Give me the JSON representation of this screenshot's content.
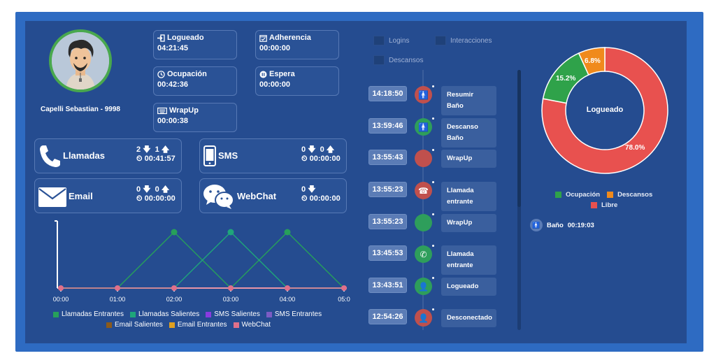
{
  "agent": {
    "name": "Capelli Sebastian - 9998"
  },
  "stats": [
    {
      "label": "Logueado",
      "value": "04:21:45",
      "icon": "login-icon"
    },
    {
      "label": "Adherencia",
      "value": "00:00:00",
      "icon": "calendar-check-icon"
    },
    {
      "label": "Ocupación",
      "value": "00:42:36",
      "icon": "clock-icon"
    },
    {
      "label": "Espera",
      "value": "00:00:00",
      "icon": "pause-icon"
    },
    {
      "label": "WrapUp",
      "value": "00:00:38",
      "icon": "keyboard-icon"
    }
  ],
  "channels": {
    "llamadas": {
      "name": "Llamadas",
      "in": "2",
      "out": "1",
      "time": "00:41:57"
    },
    "sms": {
      "name": "SMS",
      "in": "0",
      "out": "0",
      "time": "00:00:00"
    },
    "email": {
      "name": "Email",
      "in": "0",
      "out": "0",
      "time": "00:00:00"
    },
    "webchat": {
      "name": "WebChat",
      "in": "0",
      "time": "00:00:00"
    }
  },
  "chart_data": {
    "type": "line",
    "x": [
      "00:00",
      "01:00",
      "02:00",
      "03:00",
      "04:00",
      "05:0"
    ],
    "series": [
      {
        "name": "Llamadas Entrantes",
        "color": "#27a05a",
        "values": [
          0,
          0,
          1,
          0,
          1,
          0
        ]
      },
      {
        "name": "Llamadas Salientes",
        "color": "#1fa67a",
        "values": [
          0,
          0,
          0,
          1,
          0,
          0
        ]
      },
      {
        "name": "SMS Salientes",
        "color": "#8a3be0",
        "values": [
          0,
          0,
          0,
          0,
          0,
          0
        ]
      },
      {
        "name": "SMS Entrantes",
        "color": "#7c5cc4",
        "values": [
          0,
          0,
          0,
          0,
          0,
          0
        ]
      },
      {
        "name": "Email Salientes",
        "color": "#8a5a1c",
        "values": [
          0,
          0,
          0,
          0,
          0,
          0
        ]
      },
      {
        "name": "Email Entrantes",
        "color": "#e0a020",
        "values": [
          0,
          0,
          0,
          0,
          0,
          0
        ]
      },
      {
        "name": "WebChat",
        "color": "#e0708a",
        "values": [
          0,
          0,
          0,
          0,
          0,
          0
        ]
      }
    ],
    "ylim": [
      0,
      1.15
    ]
  },
  "timeline": {
    "legend": [
      "Logins",
      "Interacciones",
      "Descansos"
    ],
    "events": [
      {
        "time": "14:18:50",
        "label": "Resumir Baño",
        "color": "#c0504d",
        "icon": "person-icon"
      },
      {
        "time": "13:59:46",
        "label": "Descanso Baño",
        "color": "#2e9e5b",
        "icon": "person-icon"
      },
      {
        "time": "13:55:43",
        "label": "WrapUp",
        "color": "#c0504d",
        "icon": ""
      },
      {
        "time": "13:55:23",
        "label": "Llamada entrante",
        "color": "#c0504d",
        "icon": "phone-hangup-icon"
      },
      {
        "time": "13:55:23",
        "label": "WrapUp",
        "color": "#2e9e5b",
        "icon": ""
      },
      {
        "time": "13:45:53",
        "label": "Llamada entrante",
        "color": "#2e9e5b",
        "icon": "phone-icon"
      },
      {
        "time": "13:43:51",
        "label": "Logueado",
        "color": "#2e9e5b",
        "icon": "user-plus-icon"
      },
      {
        "time": "12:54:26",
        "label": "Desconectado",
        "color": "#c0504d",
        "icon": "user-x-icon"
      }
    ]
  },
  "donut": {
    "center_label": "Logueado",
    "slices": [
      {
        "label": "Libre",
        "value": 78.0,
        "display": "78.0%",
        "color": "#e8514f"
      },
      {
        "label": "Ocupación",
        "value": 15.2,
        "display": "15.2%",
        "color": "#2fa24a"
      },
      {
        "label": "Descansos",
        "value": 6.8,
        "display": "6.8%",
        "color": "#f08a1c"
      }
    ]
  },
  "break_status": {
    "label": "Baño",
    "time": "00:19:03"
  }
}
